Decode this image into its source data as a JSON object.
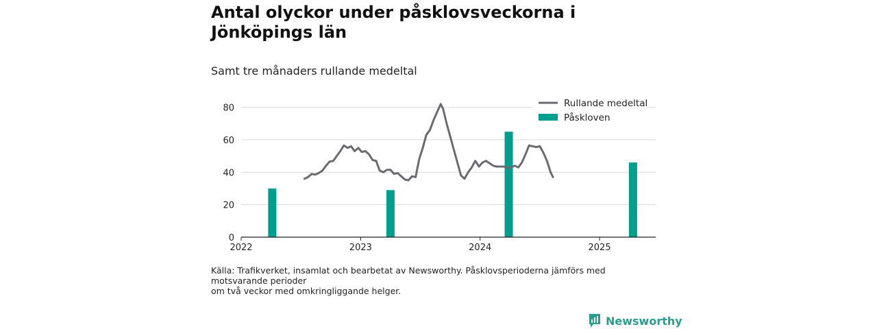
{
  "header": {
    "title": "Antal olyckor under påsklovsveckorna i Jönköpings län",
    "subtitle": "Samt tre månaders rullande medeltal"
  },
  "footer": {
    "source_line1": "Källa: Trafikverket, insamlat och bearbetat av Newsworthy. Påsklovsperioderna jämförs med motsvarande perioder",
    "source_line2": "om två veckor med omkringliggande helger.",
    "brand": "Newsworthy"
  },
  "colors": {
    "line": "#6b6b6f",
    "bar": "#009e8e",
    "grid": "#d9d9d9",
    "brand": "#2a9d8f"
  },
  "chart_data": {
    "type": "bar+line",
    "xlim": [
      2022.0,
      2025.47
    ],
    "ylim": [
      0,
      87
    ],
    "yticks": [
      0,
      20,
      40,
      60,
      80
    ],
    "xticks": [
      "2022",
      "2023",
      "2024",
      "2025"
    ],
    "legend_position": "top-right",
    "grid": "horizontal",
    "series": [
      {
        "name": "Rullande medeltal",
        "kind": "line",
        "points": [
          [
            2022.53,
            36
          ],
          [
            2022.56,
            37
          ],
          [
            2022.59,
            39
          ],
          [
            2022.62,
            38.5
          ],
          [
            2022.65,
            39.5
          ],
          [
            2022.68,
            41
          ],
          [
            2022.71,
            44
          ],
          [
            2022.74,
            46.5
          ],
          [
            2022.77,
            47
          ],
          [
            2022.8,
            50
          ],
          [
            2022.83,
            53
          ],
          [
            2022.86,
            56.5
          ],
          [
            2022.89,
            55
          ],
          [
            2022.92,
            56
          ],
          [
            2022.95,
            53
          ],
          [
            2022.98,
            55
          ],
          [
            2023.01,
            52.5
          ],
          [
            2023.04,
            53
          ],
          [
            2023.07,
            51
          ],
          [
            2023.1,
            47.5
          ],
          [
            2023.13,
            47
          ],
          [
            2023.16,
            41
          ],
          [
            2023.19,
            40
          ],
          [
            2023.22,
            41.5
          ],
          [
            2023.25,
            41.5
          ],
          [
            2023.28,
            39
          ],
          [
            2023.31,
            39.5
          ],
          [
            2023.34,
            37.5
          ],
          [
            2023.37,
            35.5
          ],
          [
            2023.4,
            35
          ],
          [
            2023.43,
            37.5
          ],
          [
            2023.46,
            37
          ],
          [
            2023.49,
            48
          ],
          [
            2023.52,
            55
          ],
          [
            2023.55,
            63
          ],
          [
            2023.58,
            66
          ],
          [
            2023.61,
            72
          ],
          [
            2023.64,
            77
          ],
          [
            2023.67,
            82
          ],
          [
            2023.69,
            79
          ],
          [
            2023.72,
            70
          ],
          [
            2023.75,
            62
          ],
          [
            2023.78,
            54
          ],
          [
            2023.81,
            46
          ],
          [
            2023.84,
            38
          ],
          [
            2023.87,
            36
          ],
          [
            2023.9,
            40
          ],
          [
            2023.93,
            43
          ],
          [
            2023.96,
            47
          ],
          [
            2023.99,
            43.5
          ],
          [
            2024.02,
            46
          ],
          [
            2024.05,
            47
          ],
          [
            2024.08,
            45.5
          ],
          [
            2024.11,
            44
          ],
          [
            2024.14,
            43.5
          ],
          [
            2024.17,
            43.5
          ],
          [
            2024.2,
            43.5
          ],
          [
            2024.23,
            42.5
          ],
          [
            2024.26,
            43
          ],
          [
            2024.29,
            44
          ],
          [
            2024.32,
            43
          ],
          [
            2024.35,
            46
          ],
          [
            2024.38,
            51
          ],
          [
            2024.41,
            56.5
          ],
          [
            2024.44,
            56
          ],
          [
            2024.47,
            55.5
          ],
          [
            2024.5,
            56
          ],
          [
            2024.53,
            52
          ],
          [
            2024.56,
            47
          ],
          [
            2024.59,
            40
          ],
          [
            2024.61,
            37
          ]
        ]
      },
      {
        "name": "Påskloven",
        "kind": "bar",
        "points": [
          [
            2022.26,
            30
          ],
          [
            2023.25,
            29
          ],
          [
            2024.24,
            65
          ],
          [
            2025.28,
            46
          ]
        ]
      }
    ]
  }
}
